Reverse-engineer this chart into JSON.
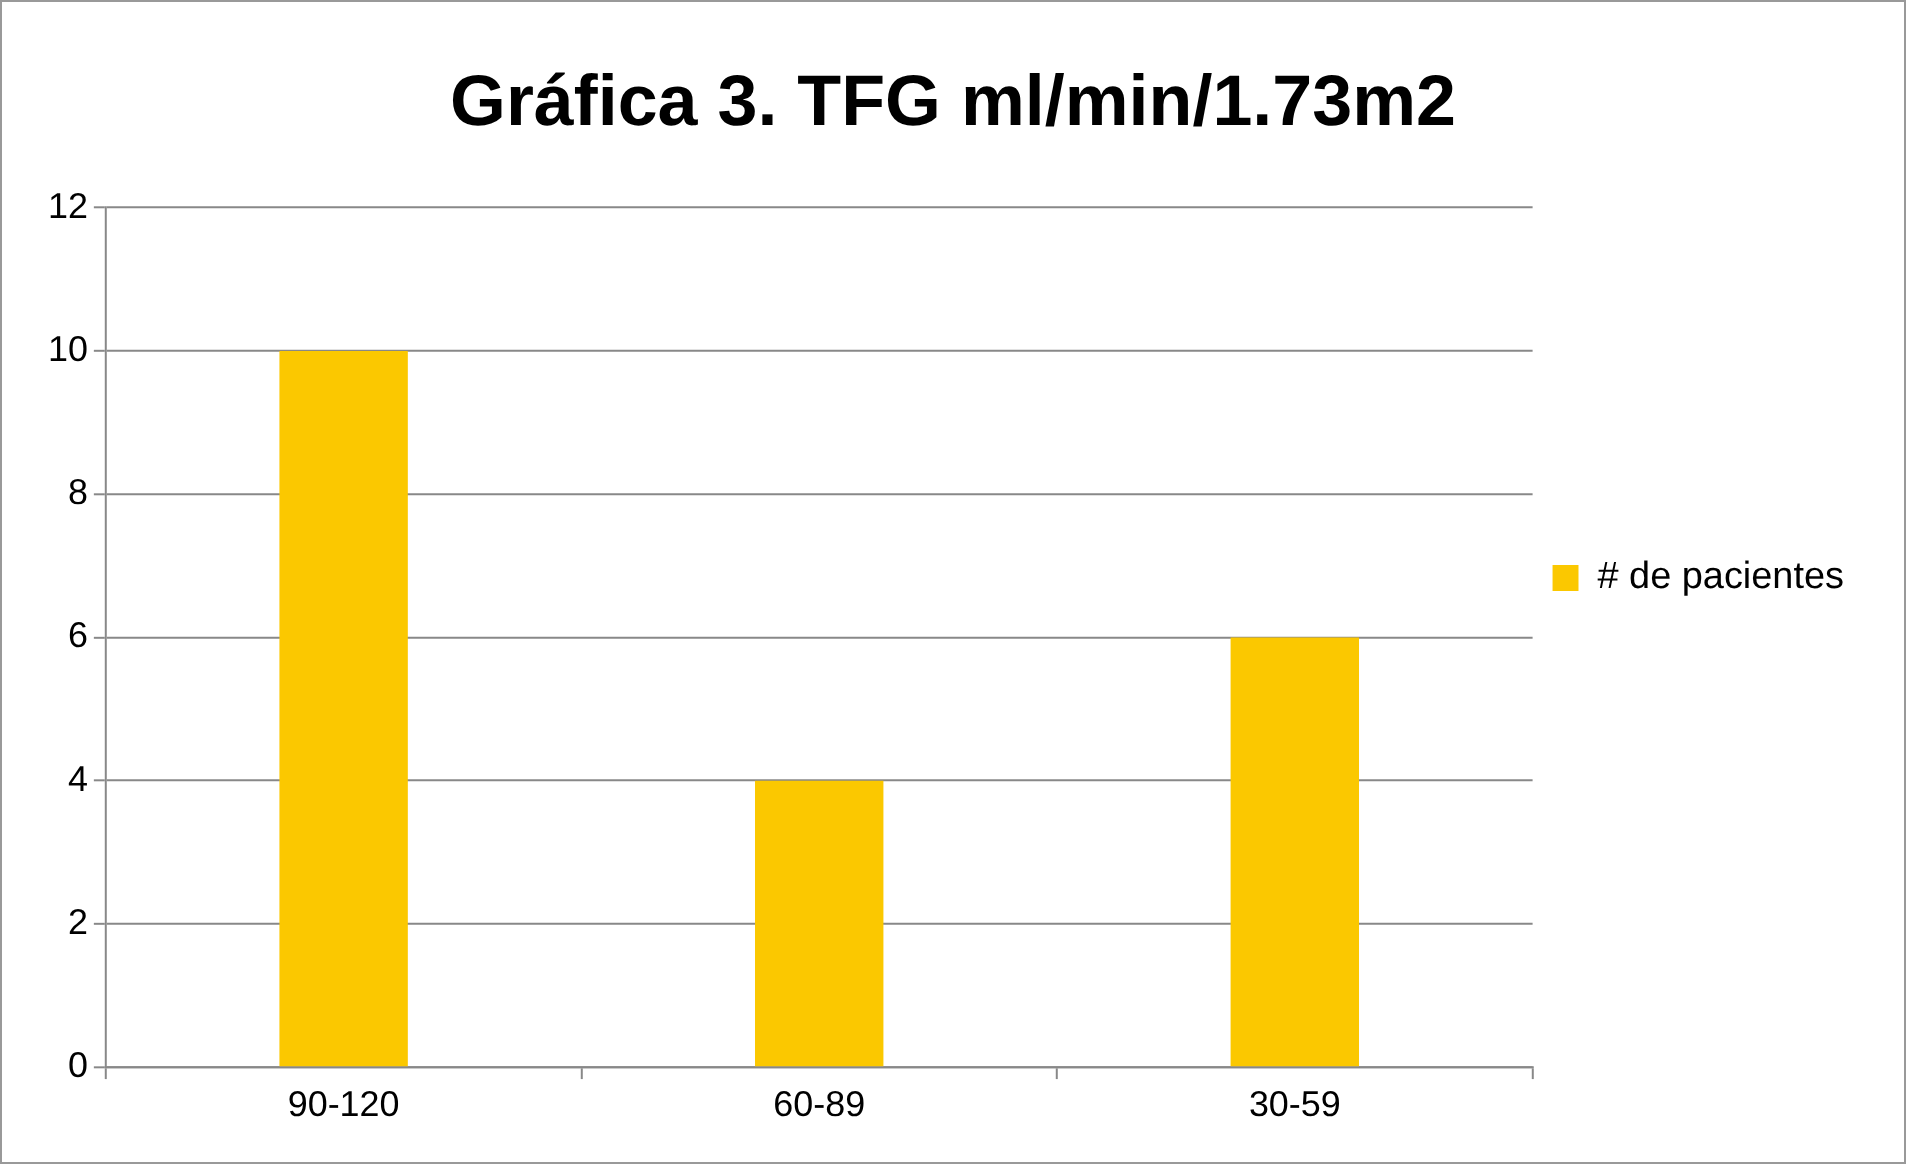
{
  "chart_data": {
    "type": "bar",
    "title": "Gráfica 3. TFG ml/min/1.73m2",
    "categories": [
      "90-120",
      "60-89",
      "30-59"
    ],
    "series": [
      {
        "name": "# de pacientes",
        "color": "#fbc800",
        "values": [
          10,
          4,
          6
        ]
      }
    ],
    "ylim": [
      0,
      12
    ],
    "yticks": [
      0,
      2,
      4,
      6,
      8,
      10,
      12
    ],
    "grid": "y",
    "legend": "right"
  }
}
